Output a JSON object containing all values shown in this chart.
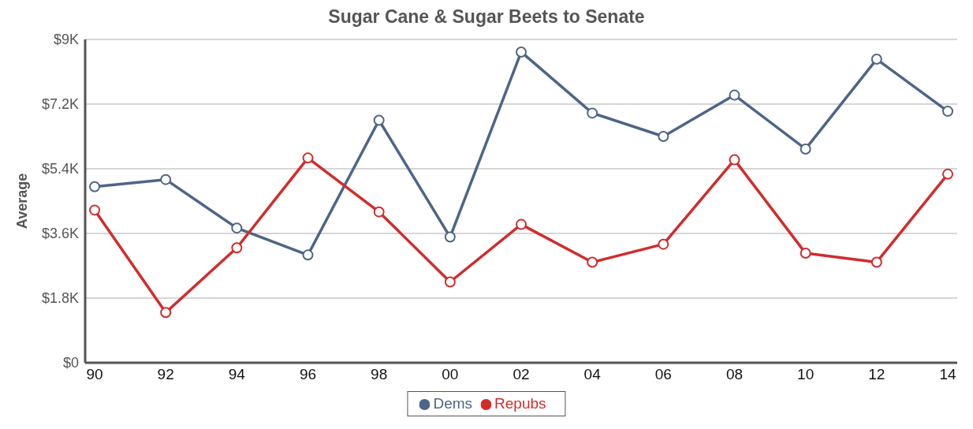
{
  "chart_data": {
    "type": "line",
    "title": "Sugar Cane & Sugar Beets to Senate",
    "ylabel": "Average",
    "categories": [
      "90",
      "92",
      "94",
      "96",
      "98",
      "00",
      "02",
      "04",
      "06",
      "08",
      "10",
      "12",
      "14"
    ],
    "series": [
      {
        "name": "Dems",
        "color": "#4d6587",
        "values": [
          4900,
          5100,
          3750,
          3000,
          6750,
          3500,
          8650,
          6950,
          6300,
          7450,
          5950,
          8450,
          7000
        ]
      },
      {
        "name": "Repubs",
        "color": "#d12c2c",
        "values": [
          4250,
          1400,
          3200,
          5700,
          4200,
          2250,
          3850,
          2800,
          3300,
          5650,
          3050,
          2800,
          5250
        ]
      }
    ],
    "ylim": [
      0,
      9000
    ],
    "yticks": [
      {
        "value": 0,
        "label": "$0"
      },
      {
        "value": 1800,
        "label": "$1.8K"
      },
      {
        "value": 3600,
        "label": "$3.6K"
      },
      {
        "value": 5400,
        "label": "$5.4K"
      },
      {
        "value": 7200,
        "label": "$7.2K"
      },
      {
        "value": 9000,
        "label": "$9K"
      }
    ],
    "grid": "y",
    "legend": "bottom",
    "marker": "circle",
    "line_style": "solid"
  }
}
